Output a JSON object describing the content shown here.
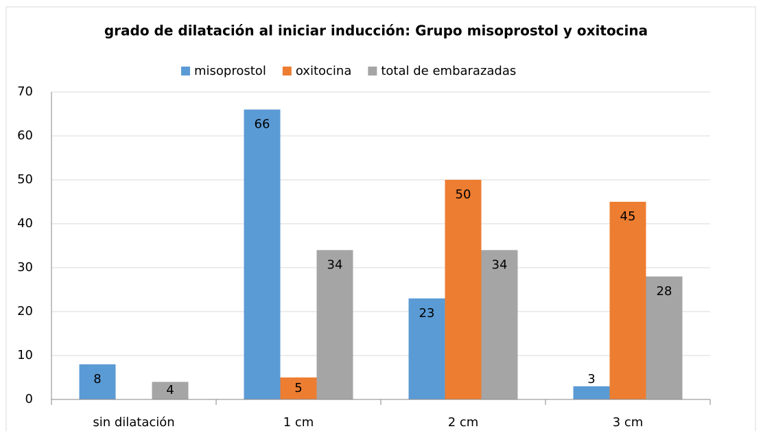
{
  "chart_data": {
    "type": "bar",
    "title": "grado de dilatación al iniciar inducción: Grupo misoprostol y oxitocina",
    "categories": [
      "sin dilatación",
      "1 cm",
      "2 cm",
      "3 cm"
    ],
    "series": [
      {
        "name": "misoprostol",
        "color": "#5b9bd5",
        "values": [
          8,
          66,
          23,
          3
        ]
      },
      {
        "name": "oxitocina",
        "color": "#ed7d31",
        "values": [
          null,
          5,
          50,
          45
        ]
      },
      {
        "name": "total de embarazadas",
        "color": "#a5a5a5",
        "values": [
          4,
          34,
          34,
          28
        ]
      }
    ],
    "ylim": [
      0,
      70
    ],
    "yticks": [
      0,
      10,
      20,
      30,
      40,
      50,
      60,
      70
    ],
    "grid": true,
    "legend": "top"
  }
}
